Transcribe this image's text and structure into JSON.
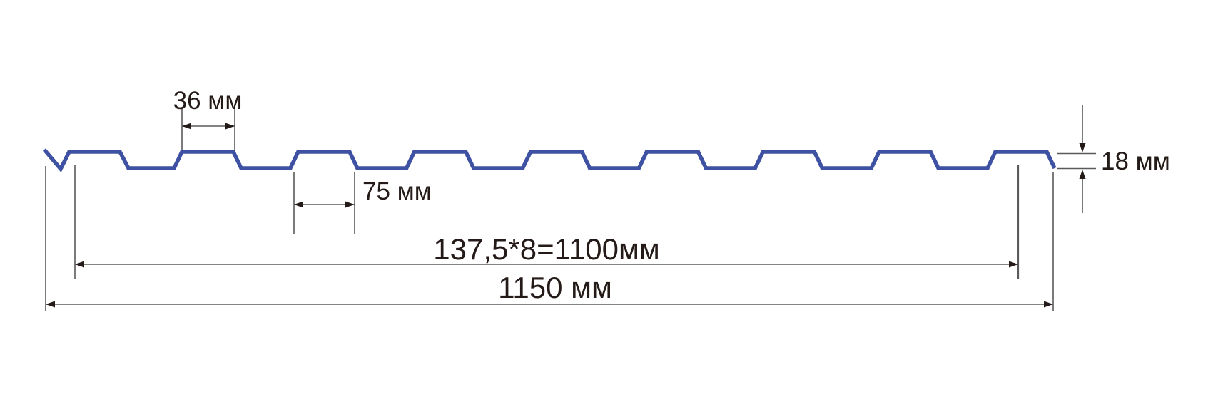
{
  "diagram": {
    "type": "profiled-sheet-cross-section",
    "labels": {
      "rib_top_width": "36 мм",
      "rib_base_width": "75 мм",
      "working_width": "137,5*8=1100мм",
      "overall_width": "1150 мм",
      "profile_height": "18 мм"
    },
    "values": {
      "rib_top_width_mm": 36,
      "rib_base_width_mm": 75,
      "pitch_mm": 137.5,
      "pitch_count": 8,
      "working_width_mm": 1100,
      "overall_width_mm": 1150,
      "profile_height_mm": 18,
      "rib_count": 8
    },
    "colors": {
      "profile": "#3f51a2",
      "profile_light": "#7c89c4",
      "dimension_lines": "#5a5a5a",
      "arrows": "#241b18",
      "text": "#241b18",
      "background": "#ffffff"
    }
  }
}
